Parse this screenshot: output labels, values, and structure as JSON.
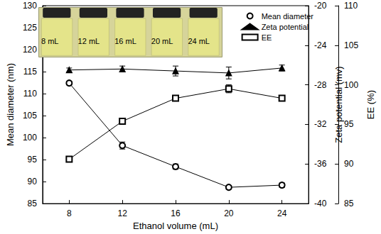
{
  "chart_data": {
    "type": "line",
    "x_label": "Ethanol volume (mL)",
    "categories": [
      8,
      12,
      16,
      20,
      24
    ],
    "y_label": "Mean diameter (nm)",
    "y2_label": "Zeta potential (mv)",
    "y3_label": "EE (%)",
    "ylim": [
      85,
      130
    ],
    "yticks": [
      85,
      90,
      95,
      100,
      105,
      110,
      115,
      120,
      125,
      130
    ],
    "y2lim": [
      -40,
      -20
    ],
    "y2ticks": [
      -40,
      -36,
      -32,
      -28,
      -24,
      -20
    ],
    "y3lim": [
      85,
      110
    ],
    "y3ticks": [
      85,
      90,
      95,
      100,
      105,
      110
    ],
    "legend": "upper right",
    "annotations": [
      "8 mL",
      "12 mL",
      "16 mL",
      "20 mL",
      "24 mL"
    ],
    "series": [
      {
        "name": "Mean diameter",
        "color": "#000000",
        "marker": "circle-open",
        "values": [
          112.4,
          98.2,
          93.4,
          88.7,
          89.2
        ],
        "errors": [
          0.3,
          0.8,
          0.6,
          0.4,
          0.5
        ]
      },
      {
        "name": "Zeta potential",
        "color": "#000000",
        "marker": "triangle",
        "axis": "y2",
        "values": [
          -26.5,
          -26.4,
          -26.6,
          -26.8,
          -26.3
        ],
        "errors": [
          0.2,
          0.3,
          0.5,
          0.6,
          0.3
        ]
      },
      {
        "name": "EE",
        "color": "#000000",
        "marker": "square-open",
        "axis": "y3",
        "values": [
          90.6,
          95.4,
          98.3,
          99.5,
          98.3
        ],
        "errors": [
          0.2,
          0.2,
          0.3,
          0.5,
          0.2
        ]
      }
    ]
  }
}
